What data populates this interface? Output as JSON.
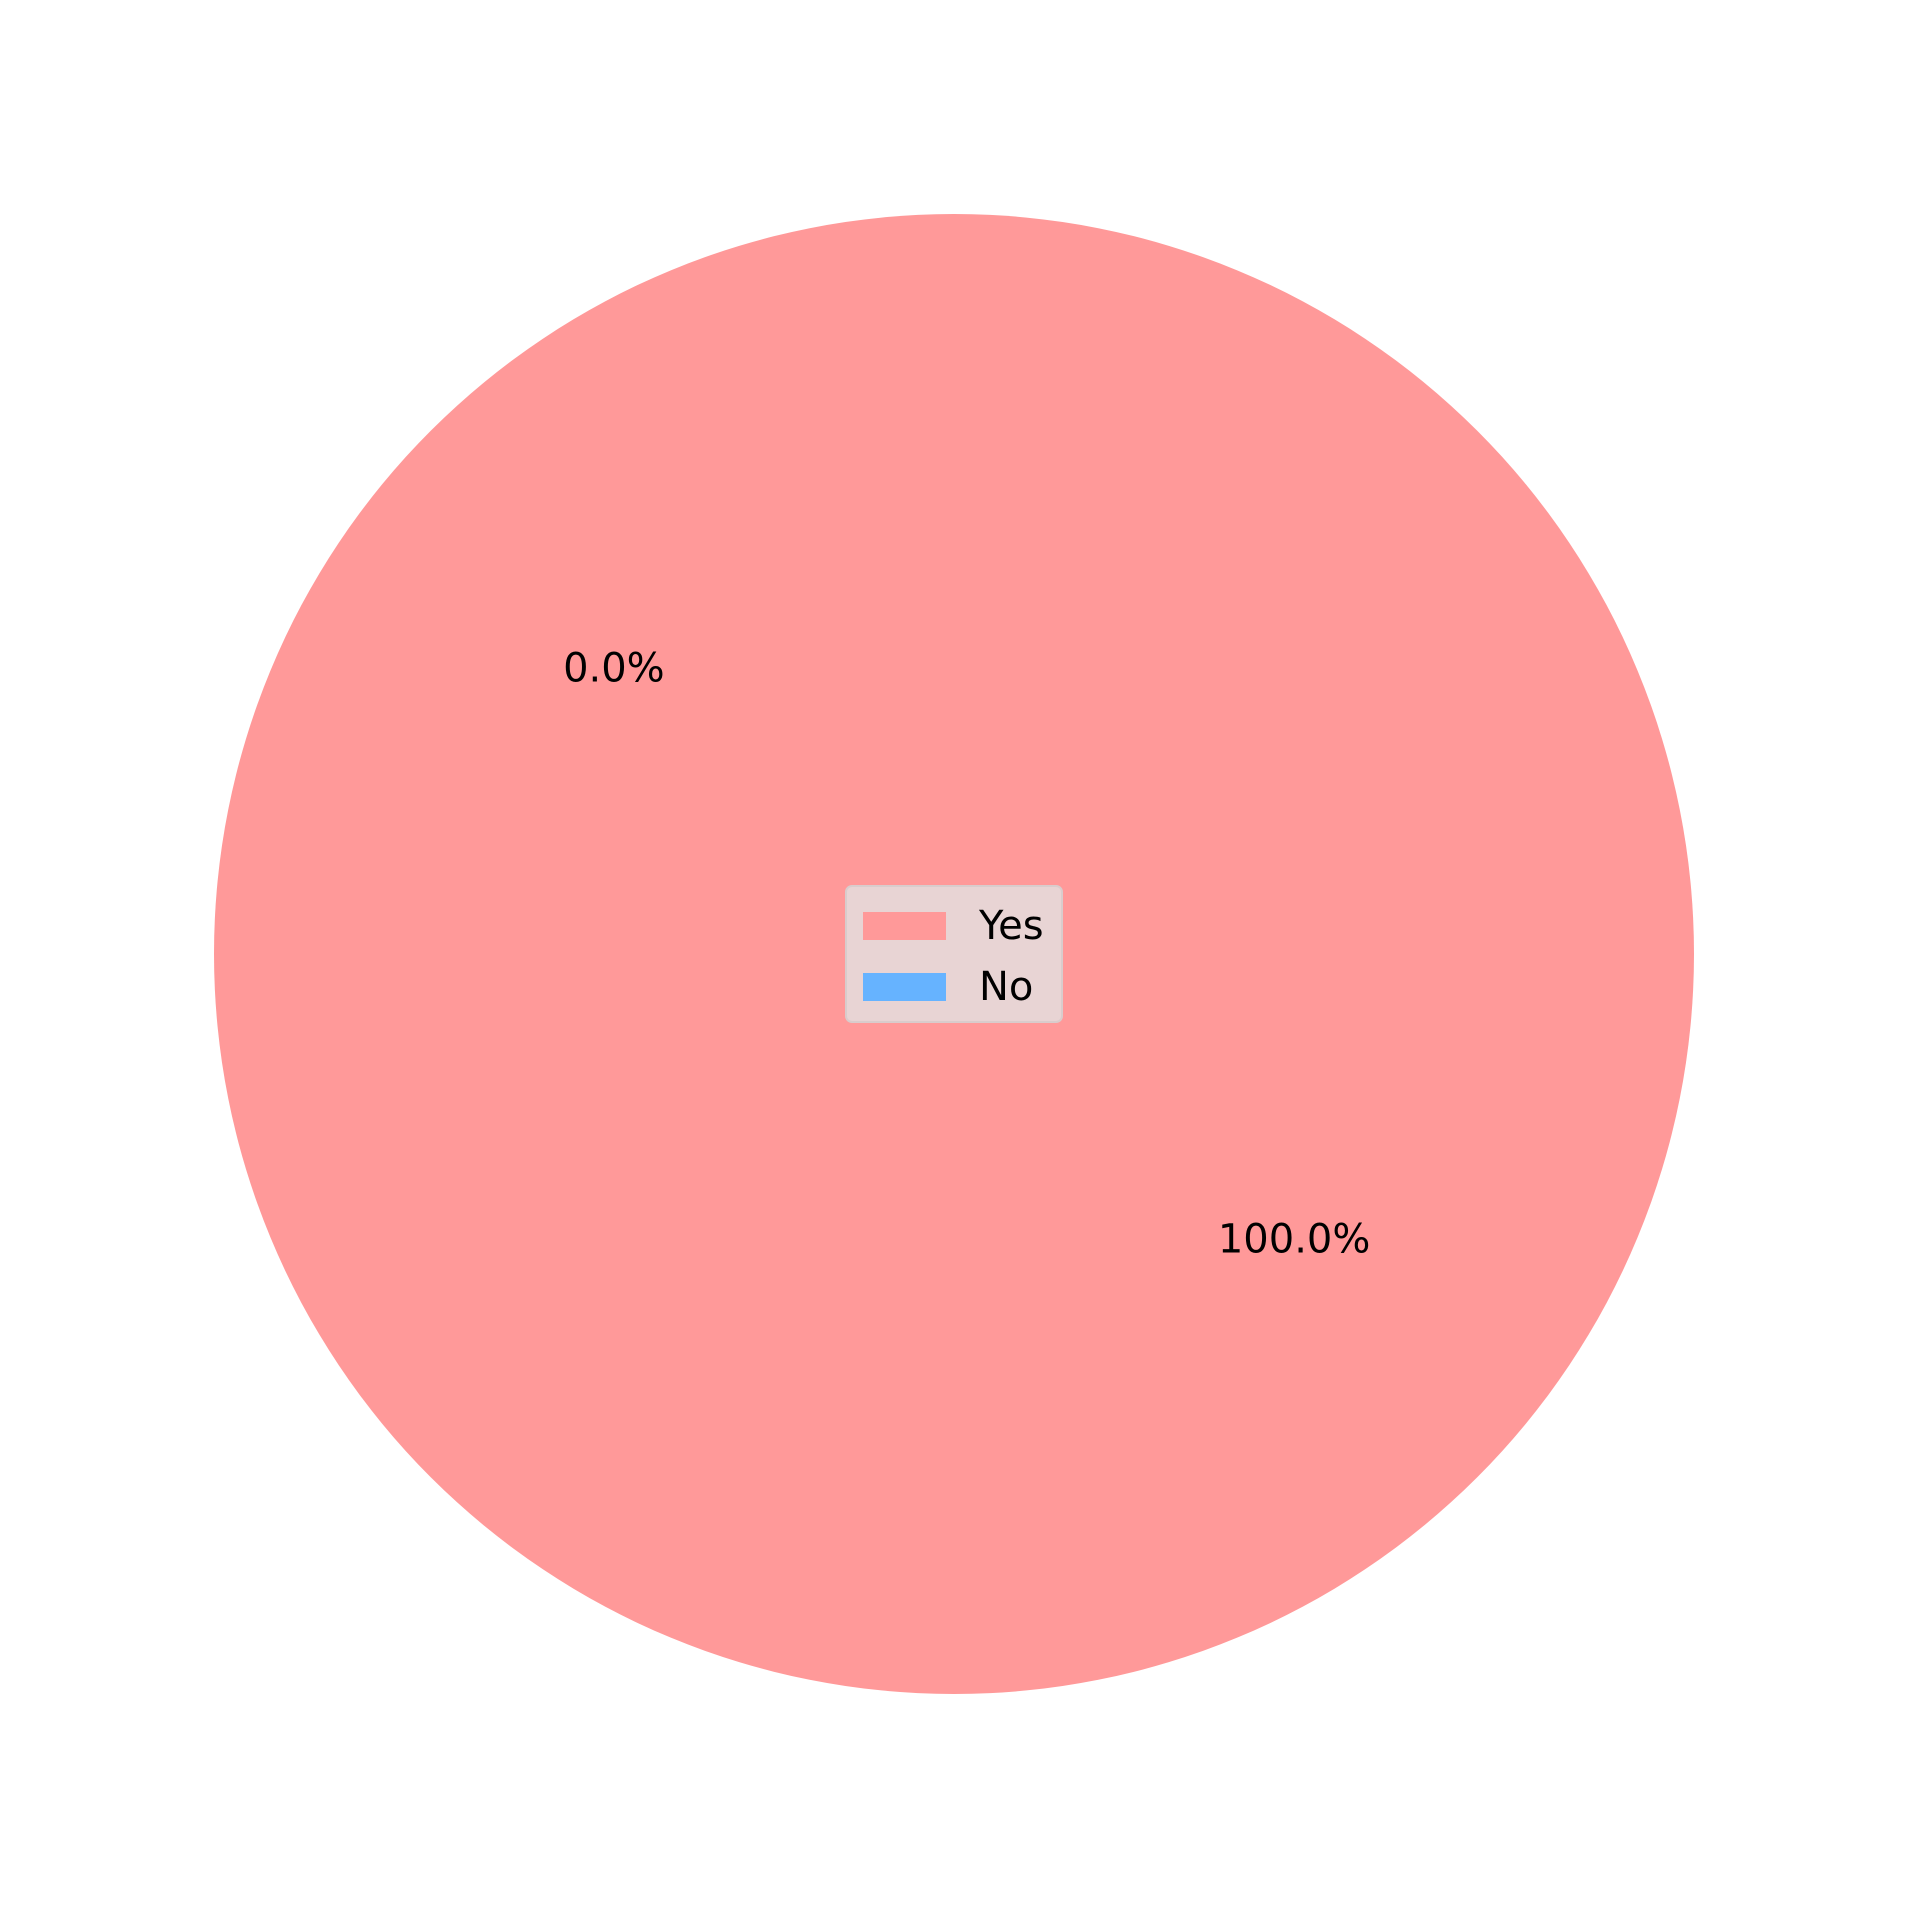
{
  "chart_data": {
    "type": "pie",
    "categories": [
      "Yes",
      "No"
    ],
    "values": [
      100.0,
      0.0
    ],
    "data_labels": [
      "100.0%",
      "0.0%"
    ],
    "colors": [
      "#ff9999",
      "#66b3ff"
    ],
    "start_angle_deg": 140,
    "legend": {
      "placement": "center",
      "entries": [
        "Yes",
        "No"
      ],
      "background": "#e8d4d4"
    }
  }
}
